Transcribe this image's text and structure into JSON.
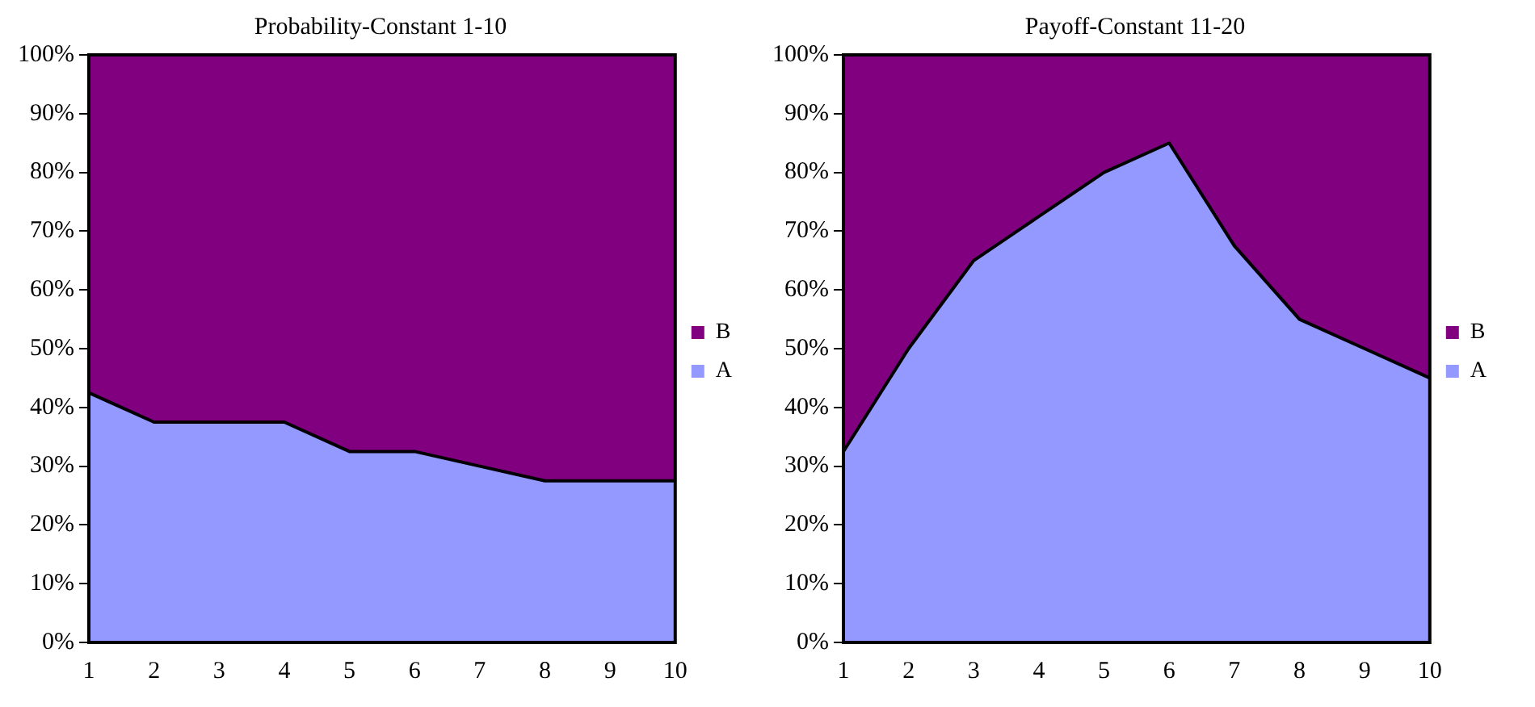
{
  "chart_data": [
    {
      "type": "area",
      "title": "Probability-Constant 1-10",
      "stacked": true,
      "legend": "right",
      "grid": false,
      "x": [
        1,
        2,
        3,
        4,
        5,
        6,
        7,
        8,
        9,
        10
      ],
      "xlim": [
        1,
        10
      ],
      "xticks": [
        1,
        2,
        3,
        4,
        5,
        6,
        7,
        8,
        9,
        10
      ],
      "ylim": [
        0,
        100
      ],
      "yticks": [
        {
          "value": 0,
          "label": "0%"
        },
        {
          "value": 10,
          "label": "10%"
        },
        {
          "value": 20,
          "label": "20%"
        },
        {
          "value": 30,
          "label": "30%"
        },
        {
          "value": 40,
          "label": "40%"
        },
        {
          "value": 50,
          "label": "50%"
        },
        {
          "value": 60,
          "label": "60%"
        },
        {
          "value": 70,
          "label": "70%"
        },
        {
          "value": 80,
          "label": "80%"
        },
        {
          "value": 90,
          "label": "90%"
        },
        {
          "value": 100,
          "label": "100%"
        }
      ],
      "series": [
        {
          "name": "A",
          "color": "#9399fe",
          "values": [
            42.5,
            37.5,
            37.5,
            37.5,
            32.5,
            32.5,
            30,
            27.5,
            27.5,
            27.5
          ]
        },
        {
          "name": "B",
          "color": "#800080",
          "values": [
            57.5,
            62.5,
            62.5,
            62.5,
            67.5,
            67.5,
            70,
            72.5,
            72.5,
            72.5
          ]
        }
      ]
    },
    {
      "type": "area",
      "title": "Payoff-Constant 11-20",
      "stacked": true,
      "legend": "right",
      "grid": false,
      "x": [
        1,
        2,
        3,
        4,
        5,
        6,
        7,
        8,
        9,
        10
      ],
      "xlim": [
        1,
        10
      ],
      "xticks": [
        1,
        2,
        3,
        4,
        5,
        6,
        7,
        8,
        9,
        10
      ],
      "ylim": [
        0,
        100
      ],
      "yticks": [
        {
          "value": 0,
          "label": "0%"
        },
        {
          "value": 10,
          "label": "10%"
        },
        {
          "value": 20,
          "label": "20%"
        },
        {
          "value": 30,
          "label": "30%"
        },
        {
          "value": 40,
          "label": "40%"
        },
        {
          "value": 50,
          "label": "50%"
        },
        {
          "value": 60,
          "label": "60%"
        },
        {
          "value": 70,
          "label": "70%"
        },
        {
          "value": 80,
          "label": "80%"
        },
        {
          "value": 90,
          "label": "90%"
        },
        {
          "value": 100,
          "label": "100%"
        }
      ],
      "series": [
        {
          "name": "A",
          "color": "#9399fe",
          "values": [
            32.5,
            50,
            65,
            72.5,
            80,
            85,
            67.5,
            55,
            50,
            45
          ]
        },
        {
          "name": "B",
          "color": "#800080",
          "values": [
            67.5,
            50,
            35,
            27.5,
            20,
            15,
            32.5,
            45,
            50,
            55
          ]
        }
      ]
    }
  ]
}
